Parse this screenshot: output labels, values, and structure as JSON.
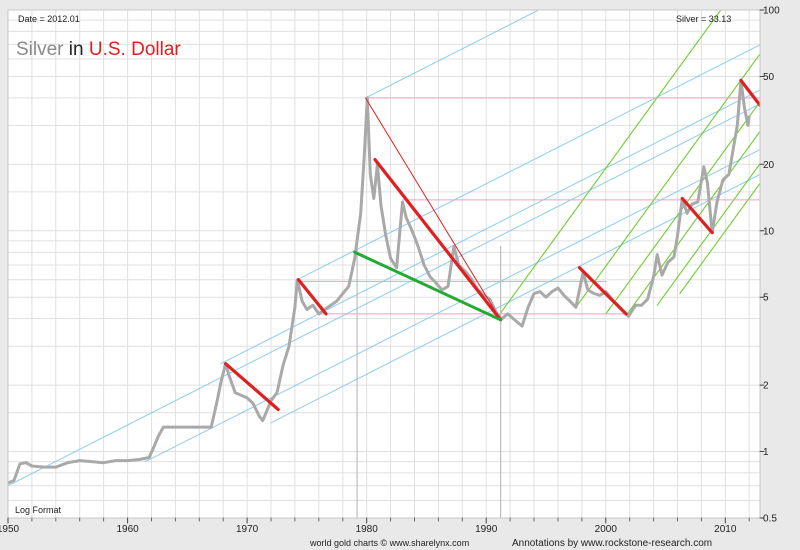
{
  "header": {
    "date_label": "Date = 2012.01",
    "value_label": "Silver = 33.13"
  },
  "title": {
    "part1": "Silver",
    "part2": " in ",
    "part3": "U.S. Dollar"
  },
  "footer": {
    "format_label": "Log Format",
    "source_credit": "world gold charts © www.sharelynx.com",
    "annotation_credit": "Annotations by www.rockstone-research.com"
  },
  "colors": {
    "background": "#ffffff",
    "price_line": "#a9a9a9",
    "red_title": "#e02020",
    "red_annotation": "#e02020",
    "green_annotation": "#22aa33",
    "blue_channel": "#7fc8ee",
    "green_channel": "#66cc22",
    "pink_level": "#f0a0c0",
    "grid": "#e0e0e0"
  },
  "chart_data": {
    "type": "line",
    "title": "Silver in U.S. Dollar",
    "xlabel": "",
    "ylabel": "",
    "scale_y": "log",
    "xlim": [
      1950,
      2012.9
    ],
    "ylim": [
      0.5,
      100
    ],
    "x_ticks": [
      1950,
      1960,
      1970,
      1980,
      1990,
      2000,
      2010
    ],
    "y_ticks": [
      0.5,
      1,
      2,
      5,
      10,
      20,
      50,
      100
    ],
    "grid": true,
    "series": [
      {
        "name": "Silver",
        "points": [
          [
            1950.0,
            0.72
          ],
          [
            1950.5,
            0.74
          ],
          [
            1951.0,
            0.88
          ],
          [
            1951.5,
            0.89
          ],
          [
            1952.0,
            0.86
          ],
          [
            1953.0,
            0.85
          ],
          [
            1954.0,
            0.85
          ],
          [
            1955.0,
            0.89
          ],
          [
            1956.0,
            0.91
          ],
          [
            1957.0,
            0.9
          ],
          [
            1958.0,
            0.89
          ],
          [
            1959.0,
            0.91
          ],
          [
            1960.0,
            0.91
          ],
          [
            1961.0,
            0.92
          ],
          [
            1961.8,
            0.94
          ],
          [
            1962.2,
            1.05
          ],
          [
            1962.6,
            1.18
          ],
          [
            1963.0,
            1.29
          ],
          [
            1964.0,
            1.29
          ],
          [
            1965.0,
            1.29
          ],
          [
            1966.0,
            1.29
          ],
          [
            1967.0,
            1.29
          ],
          [
            1967.5,
            1.7
          ],
          [
            1967.8,
            2.05
          ],
          [
            1968.2,
            2.5
          ],
          [
            1968.5,
            2.2
          ],
          [
            1969.0,
            1.85
          ],
          [
            1969.5,
            1.8
          ],
          [
            1970.0,
            1.75
          ],
          [
            1970.5,
            1.65
          ],
          [
            1971.0,
            1.45
          ],
          [
            1971.3,
            1.38
          ],
          [
            1971.7,
            1.55
          ],
          [
            1972.0,
            1.7
          ],
          [
            1972.5,
            1.85
          ],
          [
            1973.0,
            2.45
          ],
          [
            1973.5,
            3.0
          ],
          [
            1974.0,
            4.5
          ],
          [
            1974.2,
            6.0
          ],
          [
            1974.6,
            4.8
          ],
          [
            1975.0,
            4.4
          ],
          [
            1975.5,
            4.6
          ],
          [
            1976.0,
            4.2
          ],
          [
            1976.5,
            4.4
          ],
          [
            1977.0,
            4.6
          ],
          [
            1977.5,
            4.8
          ],
          [
            1978.0,
            5.2
          ],
          [
            1978.5,
            5.6
          ],
          [
            1979.0,
            7.5
          ],
          [
            1979.5,
            12.0
          ],
          [
            1979.8,
            22.0
          ],
          [
            1980.05,
            40.0
          ],
          [
            1980.3,
            18.0
          ],
          [
            1980.6,
            14.0
          ],
          [
            1980.9,
            20.0
          ],
          [
            1981.2,
            13.0
          ],
          [
            1981.6,
            9.5
          ],
          [
            1982.0,
            7.5
          ],
          [
            1982.5,
            6.8
          ],
          [
            1983.0,
            13.5
          ],
          [
            1983.3,
            11.5
          ],
          [
            1983.8,
            10.0
          ],
          [
            1984.3,
            8.5
          ],
          [
            1984.8,
            7.0
          ],
          [
            1985.3,
            6.2
          ],
          [
            1985.8,
            5.8
          ],
          [
            1986.3,
            5.4
          ],
          [
            1986.8,
            5.6
          ],
          [
            1987.3,
            8.5
          ],
          [
            1987.7,
            7.0
          ],
          [
            1988.3,
            6.5
          ],
          [
            1988.8,
            6.0
          ],
          [
            1989.3,
            5.4
          ],
          [
            1989.8,
            5.1
          ],
          [
            1990.3,
            4.9
          ],
          [
            1990.8,
            4.3
          ],
          [
            1991.2,
            3.95
          ],
          [
            1991.8,
            4.2
          ],
          [
            1992.5,
            3.9
          ],
          [
            1993.0,
            3.7
          ],
          [
            1993.5,
            4.5
          ],
          [
            1994.0,
            5.2
          ],
          [
            1994.5,
            5.3
          ],
          [
            1995.0,
            5.0
          ],
          [
            1995.5,
            5.3
          ],
          [
            1996.0,
            5.5
          ],
          [
            1996.5,
            5.1
          ],
          [
            1997.0,
            4.8
          ],
          [
            1997.5,
            4.5
          ],
          [
            1998.1,
            6.5
          ],
          [
            1998.5,
            5.4
          ],
          [
            1999.0,
            5.2
          ],
          [
            1999.5,
            5.1
          ],
          [
            2000.0,
            5.3
          ],
          [
            2000.5,
            4.9
          ],
          [
            2001.0,
            4.6
          ],
          [
            2001.5,
            4.3
          ],
          [
            2001.9,
            4.1
          ],
          [
            2002.5,
            4.6
          ],
          [
            2003.0,
            4.6
          ],
          [
            2003.5,
            4.9
          ],
          [
            2004.0,
            6.2
          ],
          [
            2004.3,
            7.8
          ],
          [
            2004.7,
            6.3
          ],
          [
            2005.2,
            7.2
          ],
          [
            2005.7,
            7.6
          ],
          [
            2006.0,
            9.5
          ],
          [
            2006.4,
            14.0
          ],
          [
            2006.8,
            12.0
          ],
          [
            2007.2,
            13.2
          ],
          [
            2007.7,
            13.5
          ],
          [
            2008.2,
            19.5
          ],
          [
            2008.5,
            16.5
          ],
          [
            2008.9,
            9.8
          ],
          [
            2009.3,
            13.5
          ],
          [
            2009.8,
            17.0
          ],
          [
            2010.3,
            18.0
          ],
          [
            2010.8,
            26.0
          ],
          [
            2011.0,
            30.0
          ],
          [
            2011.3,
            48.0
          ],
          [
            2011.6,
            36.0
          ],
          [
            2011.9,
            30.0
          ],
          [
            2012.0,
            33.13
          ]
        ]
      }
    ],
    "annotations": {
      "red_trendlines": [
        [
          [
            1968.2,
            2.5
          ],
          [
            1972.6,
            1.55
          ]
        ],
        [
          [
            1974.3,
            6.0
          ],
          [
            1976.6,
            4.2
          ]
        ],
        [
          [
            1980.7,
            21.0
          ],
          [
            1991.2,
            3.95
          ]
        ],
        [
          [
            1997.8,
            6.8
          ],
          [
            2001.7,
            4.2
          ]
        ],
        [
          [
            2006.4,
            14.0
          ],
          [
            2008.9,
            9.8
          ]
        ],
        [
          [
            2011.3,
            48.0
          ],
          [
            2012.9,
            37.0
          ]
        ],
        [
          [
            1979.9,
            40.0
          ],
          [
            1991.2,
            3.95
          ]
        ]
      ],
      "green_trendline": [
        [
          1979.0,
          8.0
        ],
        [
          1991.2,
          3.95
        ]
      ],
      "horizontal_levels": [
        {
          "y": 40.0,
          "x": [
            1979.9,
            2012.9
          ]
        },
        {
          "y": 13.8,
          "x": [
            1983.0,
            2012.9
          ]
        },
        {
          "y": 5.9,
          "x": [
            1974.5,
            2000.0
          ]
        },
        {
          "y": 4.2,
          "x": [
            1976.0,
            2002.0
          ]
        }
      ],
      "vertical_markers": [
        1979.2,
        1991.2
      ],
      "blue_channel": {
        "slope_decades_per_year": 0.0275,
        "anchors": [
          [
            1950,
            0.7
          ],
          [
            1961.5,
            0.9
          ],
          [
            1967.8,
            2.5
          ],
          [
            1974.2,
            6.0
          ],
          [
            1979.9,
            40.0
          ],
          [
            1972.0,
            1.35
          ]
        ]
      },
      "green_channel": {
        "slope_decades_per_year": 0.0745,
        "anchors": [
          [
            1991.0,
            4.1
          ],
          [
            1997.5,
            4.5
          ],
          [
            2000.0,
            4.2
          ],
          [
            2001.8,
            4.2
          ],
          [
            2004.3,
            4.6
          ],
          [
            2006.2,
            5.2
          ]
        ]
      }
    }
  }
}
